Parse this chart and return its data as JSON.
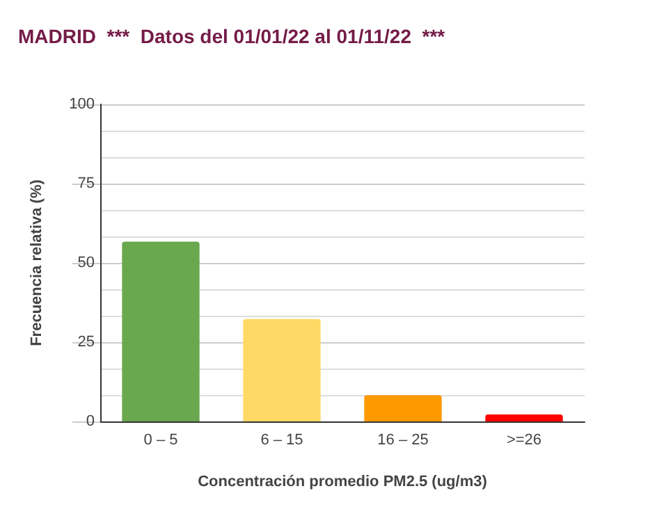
{
  "chart_data": {
    "type": "bar",
    "title": "MADRID  ***  Datos del 01/01/22 al 01/11/22  ***",
    "xlabel": "Concentración promedio PM2.5 (ug/m3)",
    "ylabel": "Frecuencia relativa (%)",
    "categories": [
      "0 – 5",
      "6 – 15",
      "16 – 25",
      ">=26"
    ],
    "values": [
      56.7,
      32.3,
      8.3,
      2.2
    ],
    "colors": [
      "#6aa84f",
      "#ffd966",
      "#ff9900",
      "#ff0000"
    ],
    "ylim": [
      0,
      100
    ],
    "yticks": [
      0,
      25,
      50,
      75,
      100
    ],
    "grid": true
  }
}
